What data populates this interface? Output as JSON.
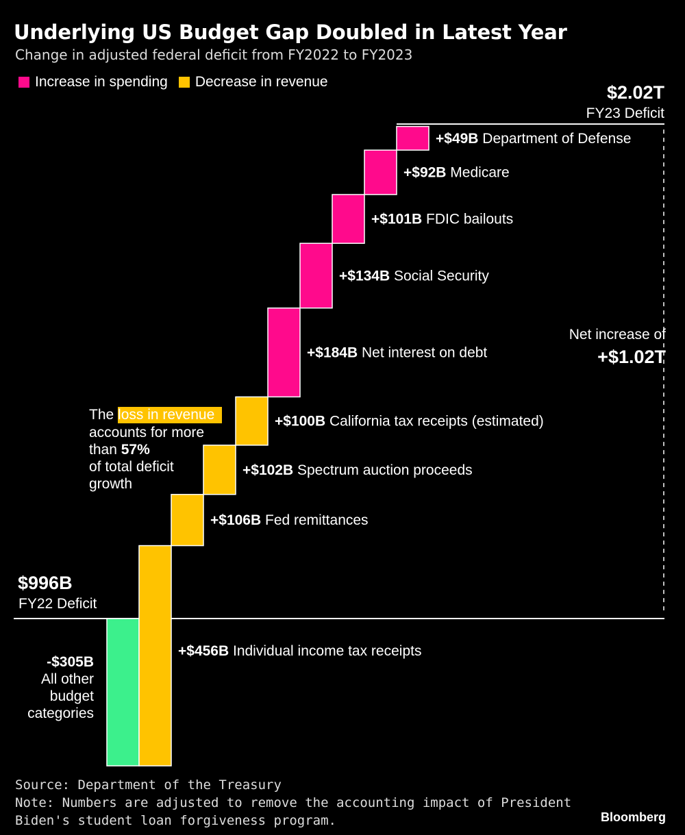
{
  "title": "Underlying US Budget Gap Doubled in Latest Year",
  "subtitle": "Change in adjusted federal deficit from FY2022 to FY2023",
  "legend": [
    {
      "label": "Increase in spending",
      "color": "#ff0a8c"
    },
    {
      "label": "Decrease in revenue",
      "color": "#ffc300"
    }
  ],
  "chart_data": {
    "type": "waterfall",
    "start": {
      "value_label": "$996B",
      "label": "FY22 Deficit",
      "value": 996
    },
    "end": {
      "value_label": "$2.02T",
      "label": "FY23 Deficit",
      "value": 2020
    },
    "steps": [
      {
        "category": "All other budget categories",
        "value": -305,
        "value_label": "-$305B",
        "kind": "other"
      },
      {
        "category": "Individual income tax receipts",
        "value": 456,
        "value_label": "+$456B",
        "kind": "revenue"
      },
      {
        "category": "Fed remittances",
        "value": 106,
        "value_label": "+$106B",
        "kind": "revenue"
      },
      {
        "category": "Spectrum auction proceeds",
        "value": 102,
        "value_label": "+$102B",
        "kind": "revenue"
      },
      {
        "category": "California tax receipts (estimated)",
        "value": 100,
        "value_label": "+$100B",
        "kind": "revenue"
      },
      {
        "category": "Net interest on debt",
        "value": 184,
        "value_label": "+$184B",
        "kind": "spending"
      },
      {
        "category": "Social Security",
        "value": 134,
        "value_label": "+$134B",
        "kind": "spending"
      },
      {
        "category": "FDIC bailouts",
        "value": 101,
        "value_label": "+$101B",
        "kind": "spending"
      },
      {
        "category": "Medicare",
        "value": 92,
        "value_label": "+$92B",
        "kind": "spending"
      },
      {
        "category": "Department of Defense",
        "value": 49,
        "value_label": "+$49B",
        "kind": "spending"
      }
    ],
    "net_annotation": {
      "line1": "Net increase of",
      "line2": "+$1.02T"
    },
    "revenue_annotation": {
      "pre": "The ",
      "highlight": "loss in revenue",
      "line2": "accounts for more",
      "line3_pre": "than ",
      "line3_bold": "57%",
      "line4": "of total deficit",
      "line5": "growth"
    },
    "colors": {
      "spending": "#ff0a8c",
      "revenue": "#ffc300",
      "other": "#3cf08c"
    }
  },
  "footer": {
    "source": "Source: Department of the Treasury",
    "note_line1": "Note: Numbers are adjusted to remove the accounting impact of President",
    "note_line2": "Biden's student loan forgiveness program."
  },
  "brand": "Bloomberg"
}
